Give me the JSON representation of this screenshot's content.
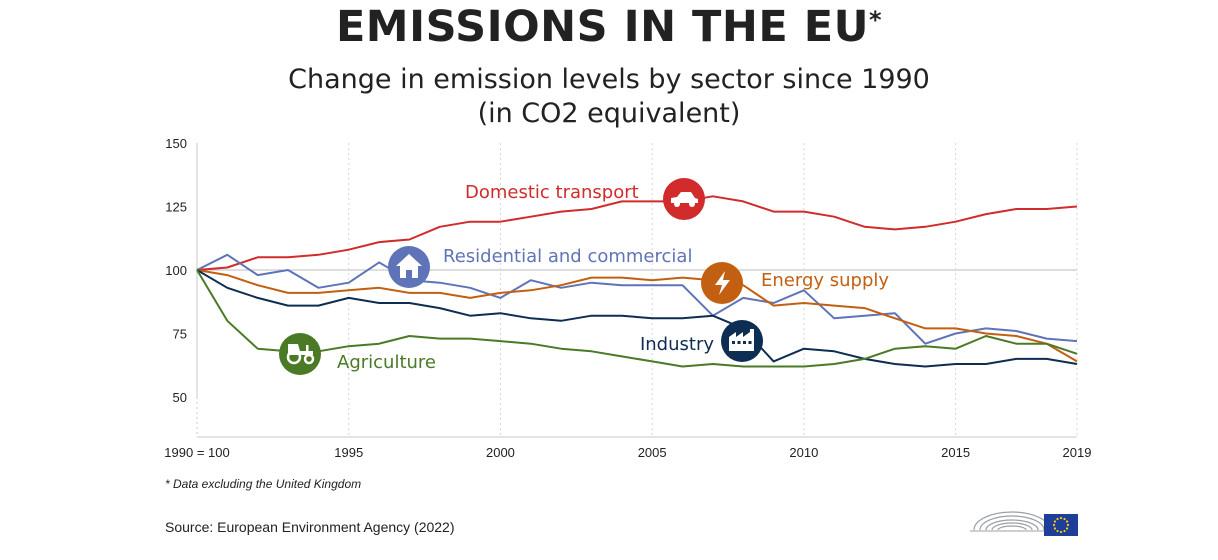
{
  "header": {
    "title": "EMISSIONS IN THE EU",
    "title_mark": "*",
    "subtitle_line1": "Change in emission levels by sector since 1990",
    "subtitle_line2": "(in CO2 equivalent)"
  },
  "chart_data": {
    "type": "line",
    "title": "EMISSIONS IN THE EU*",
    "subtitle": "Change in emission levels by sector since 1990 (in CO2 equivalent)",
    "base_label": "1990 = 100",
    "x": [
      1990,
      1991,
      1992,
      1993,
      1994,
      1995,
      1996,
      1997,
      1998,
      1999,
      2000,
      2001,
      2002,
      2003,
      2004,
      2005,
      2006,
      2007,
      2008,
      2009,
      2010,
      2011,
      2012,
      2013,
      2014,
      2015,
      2016,
      2017,
      2018,
      2019
    ],
    "xticks": [
      1995,
      2000,
      2005,
      2010,
      2015,
      2019
    ],
    "xlim": [
      1990,
      2019
    ],
    "yticks": [
      50,
      75,
      100,
      125,
      150
    ],
    "ylim": [
      38,
      150
    ],
    "reference_line": 100,
    "series": [
      {
        "name": "Domestic transport",
        "color": "#d12b2b",
        "values": [
          100,
          101,
          105,
          105,
          106,
          108,
          111,
          112,
          117,
          119,
          119,
          121,
          123,
          124,
          127,
          127,
          127,
          129,
          127,
          123,
          123,
          121,
          117,
          116,
          117,
          119,
          122,
          124,
          124,
          125
        ]
      },
      {
        "name": "Residential and commercial",
        "color": "#5f73b8",
        "values": [
          100,
          106,
          98,
          100,
          93,
          95,
          103,
          96,
          95,
          93,
          89,
          96,
          93,
          95,
          94,
          94,
          94,
          82,
          89,
          87,
          92,
          81,
          82,
          83,
          71,
          75,
          77,
          76,
          73,
          72
        ]
      },
      {
        "name": "Energy supply",
        "color": "#c35f11",
        "values": [
          100,
          98,
          94,
          91,
          91,
          92,
          93,
          91,
          91,
          89,
          91,
          92,
          94,
          97,
          97,
          96,
          97,
          96,
          94,
          86,
          87,
          86,
          85,
          81,
          77,
          77,
          75,
          74,
          71,
          64
        ]
      },
      {
        "name": "Industry",
        "color": "#0e2d52",
        "values": [
          100,
          93,
          89,
          86,
          86,
          89,
          87,
          87,
          85,
          82,
          83,
          81,
          80,
          82,
          82,
          81,
          81,
          82,
          77,
          64,
          69,
          68,
          65,
          63,
          62,
          63,
          63,
          65,
          65,
          63
        ]
      },
      {
        "name": "Agriculture",
        "color": "#4a7a25",
        "values": [
          100,
          80,
          69,
          68,
          68,
          70,
          71,
          74,
          73,
          73,
          72,
          71,
          69,
          68,
          66,
          64,
          62,
          63,
          62,
          62,
          62,
          63,
          65,
          69,
          70,
          69,
          74,
          71,
          71,
          67
        ]
      }
    ],
    "labels": [
      {
        "series": "Domestic transport",
        "text": "Domestic transport",
        "icon": "car-icon"
      },
      {
        "series": "Residential and commercial",
        "text": "Residential and commercial",
        "icon": "house-icon"
      },
      {
        "series": "Energy supply",
        "text": "Energy supply",
        "icon": "lightning-icon"
      },
      {
        "series": "Industry",
        "text": "Industry",
        "icon": "factory-icon"
      },
      {
        "series": "Agriculture",
        "text": "Agriculture",
        "icon": "tractor-icon"
      }
    ]
  },
  "footer": {
    "footnote": "* Data excluding the United Kingdom",
    "source": "Source: European Environment Agency (2022)",
    "logo_icon": "european-parliament-logo-icon"
  }
}
